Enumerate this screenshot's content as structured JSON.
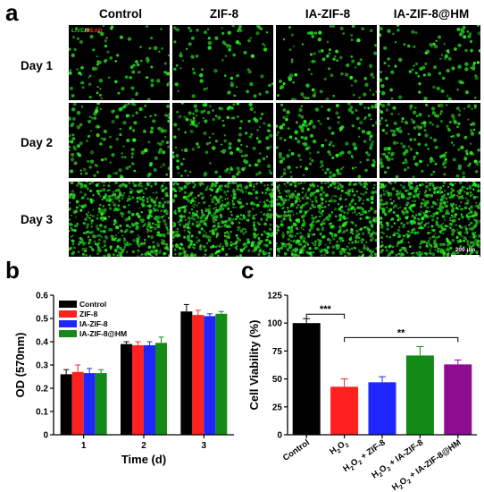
{
  "panel_a": {
    "letter": "a",
    "columns": [
      "Control",
      "ZIF-8",
      "IA-ZIF-8",
      "IA-ZIF-8@HM"
    ],
    "rows": [
      "Day 1",
      "Day 2",
      "Day 3"
    ],
    "stain_legend": {
      "live": "LIVE",
      "sep": "/",
      "dead": "DEAD"
    },
    "scale_bar": "200 μm",
    "colors": {
      "live": "#22c826",
      "dead": "#e8322c",
      "background": "#000000"
    }
  },
  "panel_b": {
    "letter": "b"
  },
  "panel_c": {
    "letter": "c"
  },
  "chart_data": [
    {
      "type": "bar",
      "panel": "b",
      "title": "",
      "xlabel": "Time (d)",
      "ylabel": "OD (570nm)",
      "categories": [
        "1",
        "2",
        "3"
      ],
      "ylim": [
        0,
        0.6
      ],
      "yticks": [
        "0",
        "0.1",
        "0.2",
        "0.3",
        "0.4",
        "0.5",
        "0.6"
      ],
      "legend_position": "top-left",
      "series": [
        {
          "name": "Control",
          "color": "#000000",
          "values": [
            0.26,
            0.39,
            0.53
          ],
          "errors": [
            0.02,
            0.01,
            0.03
          ]
        },
        {
          "name": "ZIF-8",
          "color": "#ff2020",
          "values": [
            0.27,
            0.385,
            0.515
          ],
          "errors": [
            0.03,
            0.015,
            0.02
          ]
        },
        {
          "name": "IA-ZIF-8",
          "color": "#1f26ff",
          "values": [
            0.265,
            0.385,
            0.51
          ],
          "errors": [
            0.02,
            0.015,
            0.01
          ]
        },
        {
          "name": "IA-ZIF-8@HM",
          "color": "#138a17",
          "values": [
            0.265,
            0.395,
            0.52
          ],
          "errors": [
            0.015,
            0.025,
            0.01
          ]
        }
      ]
    },
    {
      "type": "bar",
      "panel": "c",
      "title": "",
      "xlabel": "",
      "ylabel": "Cell Viability (%)",
      "ylim": [
        0,
        125
      ],
      "yticks": [
        "0",
        "25",
        "50",
        "75",
        "100",
        "125"
      ],
      "categories": [
        {
          "main": "Control",
          "parts": []
        },
        {
          "main": "",
          "parts": [
            [
              "H",
              ""
            ],
            [
              "2",
              "sub"
            ],
            [
              "O",
              ""
            ],
            [
              "2",
              "sub"
            ]
          ]
        },
        {
          "main": "",
          "parts": [
            [
              "H",
              ""
            ],
            [
              "2",
              "sub"
            ],
            [
              "O",
              ""
            ],
            [
              "2",
              "sub"
            ],
            [
              " + ZIF-8",
              ""
            ]
          ]
        },
        {
          "main": "",
          "parts": [
            [
              "H",
              ""
            ],
            [
              "2",
              "sub"
            ],
            [
              "O",
              ""
            ],
            [
              "2",
              "sub"
            ],
            [
              " + IA-ZIF-8",
              ""
            ]
          ]
        },
        {
          "main": "",
          "parts": [
            [
              "H",
              ""
            ],
            [
              "2",
              "sub"
            ],
            [
              "O",
              ""
            ],
            [
              "2",
              "sub"
            ],
            [
              " + IA-ZIF-8@HM",
              ""
            ]
          ]
        }
      ],
      "values": [
        100,
        43,
        47,
        71,
        63
      ],
      "errors": [
        4,
        7,
        5,
        8,
        4
      ],
      "colors": [
        "#000000",
        "#ff2020",
        "#1f26ff",
        "#138a17",
        "#8d0c8f"
      ],
      "significance": [
        {
          "from": 0,
          "to": 1,
          "label": "***"
        },
        {
          "from": 1,
          "to": 4,
          "label": "**"
        }
      ]
    }
  ]
}
